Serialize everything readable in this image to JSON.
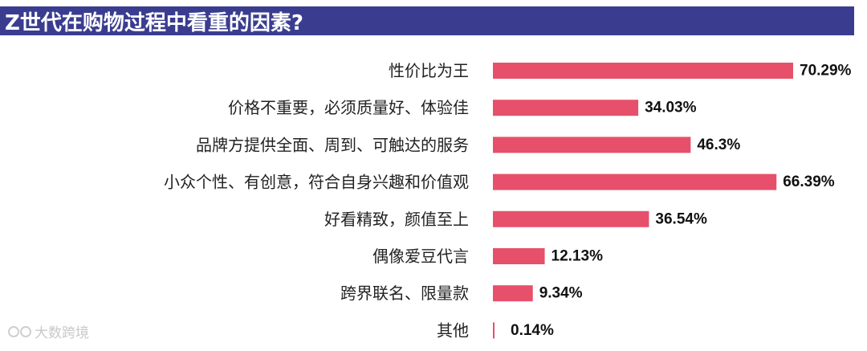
{
  "chart_data": {
    "type": "bar",
    "orientation": "horizontal",
    "title": "Z世代在购物过程中看重的因素?",
    "categories": [
      "性价比为王",
      "价格不重要，必须质量好、体验佳",
      "品牌方提供全面、周到、可触达的服务",
      "小众个性、有创意，符合自身兴趣和价值观",
      "好看精致，颜值至上",
      "偶像爱豆代言",
      "跨界联名、限量款",
      "其他"
    ],
    "values": [
      70.29,
      34.03,
      46.3,
      66.39,
      36.54,
      12.13,
      9.34,
      0.14
    ],
    "value_labels": [
      "70.29%",
      "34.03%",
      "46.3%",
      "66.39%",
      "36.54%",
      "12.13%",
      "9.34%",
      "0.14%"
    ],
    "unit": "%",
    "xlim": [
      0,
      70.29
    ],
    "grid": false,
    "legend": "none",
    "colors": {
      "bar": "#e6506a",
      "title_bg": "#3a3d8f",
      "title_text": "#ffffff",
      "label_text": "#222222",
      "value_text": "#111111"
    }
  },
  "watermark": {
    "text": "大数跨境"
  }
}
